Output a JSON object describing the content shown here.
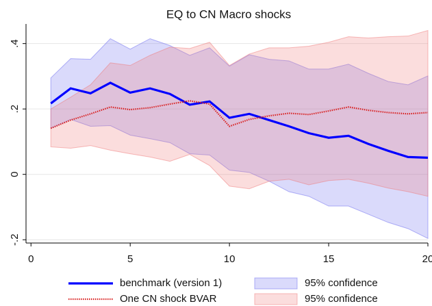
{
  "chart_data": {
    "type": "line",
    "title": "EQ to CN Macro shocks",
    "x": [
      1,
      2,
      3,
      4,
      5,
      6,
      7,
      8,
      9,
      10,
      11,
      12,
      13,
      14,
      15,
      16,
      17,
      18,
      19,
      20
    ],
    "xlim": [
      -0.25,
      20
    ],
    "xticks": [
      0,
      5,
      10,
      15,
      20
    ],
    "ylim": [
      -0.21,
      0.46
    ],
    "yticks": [
      {
        "value": -0.2,
        "label": "-.2"
      },
      0,
      {
        "value": 0.2,
        "label": ".2"
      },
      {
        "value": 0.4,
        "label": ".4"
      }
    ],
    "grid": true,
    "bands": [
      {
        "name": "95% confidence",
        "color": "#6a6af0",
        "upper": [
          0.295,
          0.354,
          0.352,
          0.415,
          0.383,
          0.415,
          0.394,
          0.364,
          0.387,
          0.331,
          0.366,
          0.352,
          0.347,
          0.322,
          0.322,
          0.337,
          0.309,
          0.284,
          0.274,
          0.301
        ],
        "lower": [
          0.141,
          0.168,
          0.147,
          0.149,
          0.12,
          0.109,
          0.097,
          0.063,
          0.059,
          0.013,
          0.006,
          -0.021,
          -0.053,
          -0.067,
          -0.097,
          -0.097,
          -0.122,
          -0.147,
          -0.166,
          -0.196
        ]
      },
      {
        "name": "95% confidence",
        "color": "#f07878",
        "upper": [
          0.2,
          0.236,
          0.274,
          0.341,
          0.333,
          0.364,
          0.389,
          0.385,
          0.404,
          0.333,
          0.368,
          0.387,
          0.387,
          0.392,
          0.404,
          0.421,
          0.417,
          0.421,
          0.423,
          0.44
        ],
        "lower": [
          0.084,
          0.08,
          0.088,
          0.074,
          0.063,
          0.053,
          0.04,
          0.061,
          0.027,
          -0.036,
          -0.044,
          -0.021,
          -0.015,
          -0.032,
          -0.019,
          -0.015,
          -0.027,
          -0.042,
          -0.053,
          -0.067
        ]
      }
    ],
    "series": [
      {
        "name": "benchmark (version 1)",
        "color": "#0000ff",
        "style": "solid",
        "values": [
          0.217,
          0.263,
          0.248,
          0.28,
          0.25,
          0.263,
          0.246,
          0.213,
          0.223,
          0.173,
          0.185,
          0.166,
          0.147,
          0.126,
          0.112,
          0.118,
          0.093,
          0.072,
          0.053,
          0.051
        ]
      },
      {
        "name": "One CN shock BVAR",
        "color": "#d82020",
        "style": "dotted",
        "values": [
          0.141,
          0.166,
          0.185,
          0.206,
          0.198,
          0.204,
          0.215,
          0.225,
          0.215,
          0.147,
          0.168,
          0.179,
          0.187,
          0.183,
          0.194,
          0.206,
          0.196,
          0.189,
          0.185,
          0.189
        ]
      }
    ]
  }
}
